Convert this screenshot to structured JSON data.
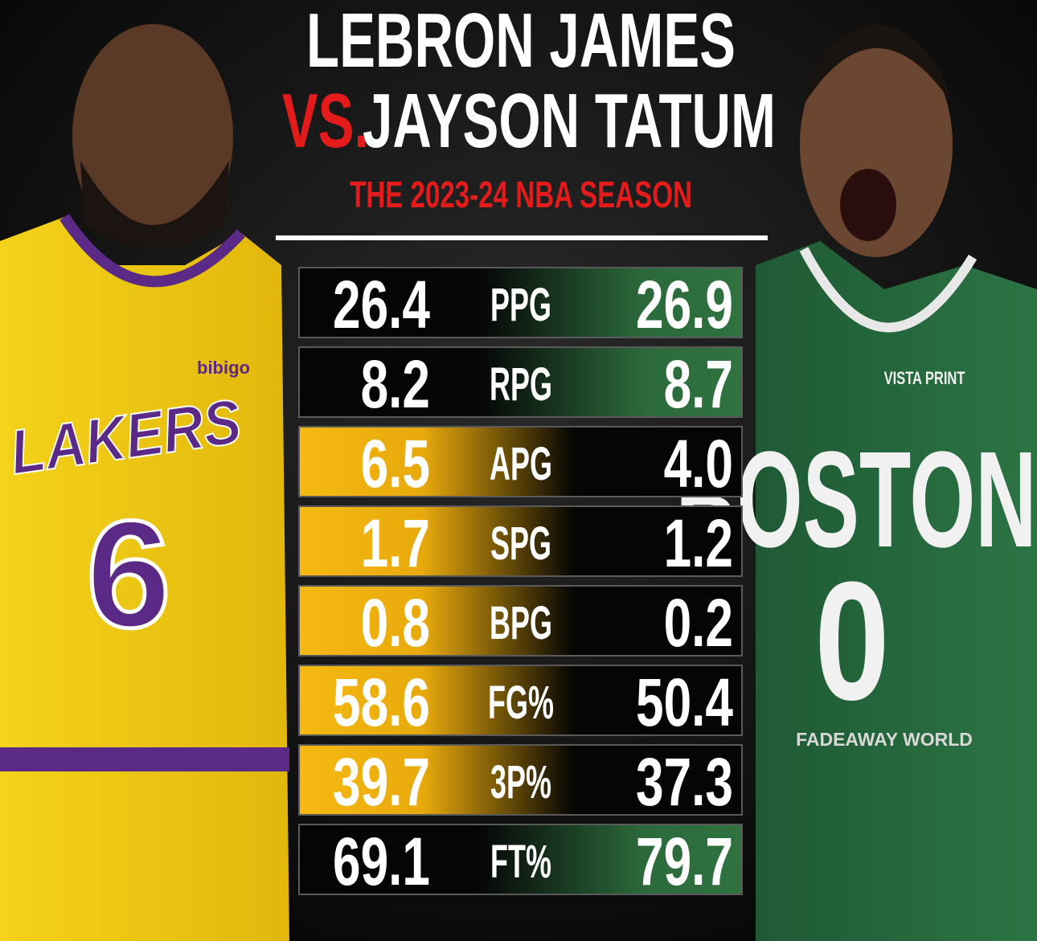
{
  "header": {
    "title_line1": "LEBRON JAMES",
    "title_vs": "VS.",
    "title_line2": "JAYSON TATUM",
    "subtitle": "THE 2023-24 NBA SEASON"
  },
  "players": {
    "left": {
      "jersey_team": "LAKERS",
      "jersey_number": "6",
      "sponsor": "bibigo"
    },
    "right": {
      "jersey_team": "BOSTON",
      "jersey_number": "0",
      "sponsor": "VISTA PRINT"
    }
  },
  "table": {
    "rows": [
      {
        "stat": "PPG",
        "left": "26.4",
        "right": "26.9"
      },
      {
        "stat": "RPG",
        "left": "8.2",
        "right": "8.7"
      },
      {
        "stat": "APG",
        "left": "6.5",
        "right": "4.0"
      },
      {
        "stat": "SPG",
        "left": "1.7",
        "right": "1.2"
      },
      {
        "stat": "BPG",
        "left": "0.8",
        "right": "0.2"
      },
      {
        "stat": "FG%",
        "left": "58.6",
        "right": "50.4"
      },
      {
        "stat": "3P%",
        "left": "39.7",
        "right": "37.3"
      },
      {
        "stat": "FT%",
        "left": "69.1",
        "right": "79.7"
      }
    ]
  },
  "watermark": "FADEAWAY WORLD"
}
